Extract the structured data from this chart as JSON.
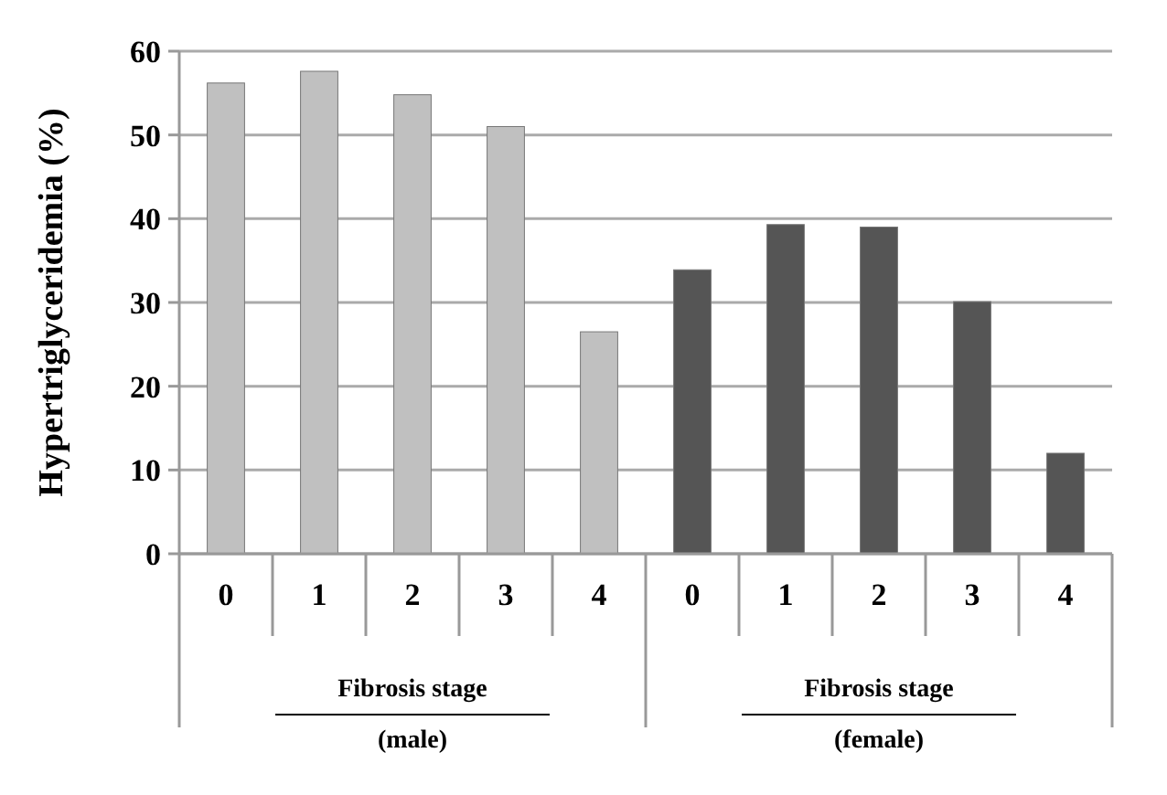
{
  "chart_data": {
    "type": "bar",
    "ylabel": "Hypertriglyceridemia (%)",
    "categories": [
      "0",
      "1",
      "2",
      "3",
      "4",
      "0",
      "1",
      "2",
      "3",
      "4"
    ],
    "series": [
      {
        "color": "#c0c0c0",
        "values": [
          56.2,
          57.6,
          54.8,
          51,
          26.5,
          null,
          null,
          null,
          null,
          null
        ]
      },
      {
        "color": "#555555",
        "values": [
          null,
          null,
          null,
          null,
          null,
          33.9,
          39.3,
          39,
          30.1,
          12
        ]
      }
    ],
    "ylim": [
      0,
      60
    ],
    "yticks": [
      0,
      10,
      20,
      30,
      40,
      50,
      60
    ],
    "grid": "y",
    "annotations": [
      "Fibrosis stage",
      "(male)",
      "Fibrosis stage",
      "(female)"
    ]
  }
}
